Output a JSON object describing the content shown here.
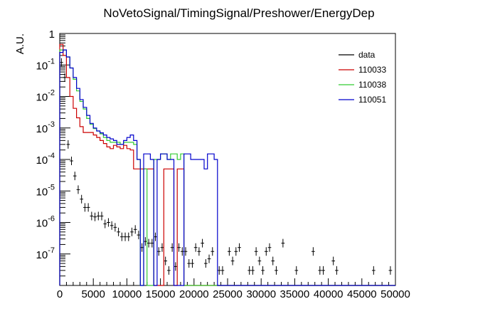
{
  "chart_data": {
    "type": "line",
    "title": "NoVetoSignal/TimingSignal/Preshower/EnergyDep",
    "xlabel": "",
    "ylabel": "A.U.",
    "xlim": [
      0,
      50000
    ],
    "ylim": [
      1e-08,
      1
    ],
    "yscale": "log",
    "grid": false,
    "legend_position": "top-right",
    "x_ticks": [
      0,
      5000,
      10000,
      15000,
      20000,
      25000,
      30000,
      35000,
      40000,
      45000,
      50000
    ],
    "x_tick_labels": [
      "0",
      "5000",
      "10000",
      "15000",
      "20000",
      "25000",
      "30000",
      "35000",
      "40000",
      "45000",
      "50000"
    ],
    "y_ticks": [
      1e-07,
      1e-06,
      1e-05,
      0.0001,
      0.001,
      0.01,
      0.1,
      1
    ],
    "y_tick_labels": [
      {
        "base": "10",
        "exp": "-7"
      },
      {
        "base": "10",
        "exp": "-6"
      },
      {
        "base": "10",
        "exp": "-5"
      },
      {
        "base": "10",
        "exp": "-4"
      },
      {
        "base": "10",
        "exp": "-3"
      },
      {
        "base": "10",
        "exp": "-2"
      },
      {
        "base": "10",
        "exp": "-1"
      },
      {
        "base": "1",
        "exp": ""
      }
    ],
    "bin_width": 500,
    "series": [
      {
        "name": "data",
        "color": "#000000",
        "style": "points",
        "points": [
          [
            250,
            0.12
          ],
          [
            750,
            0.04
          ],
          [
            1250,
            0.0003
          ],
          [
            1750,
            9e-05
          ],
          [
            2250,
            3e-05
          ],
          [
            2750,
            1.1e-05
          ],
          [
            3250,
            5.5e-06
          ],
          [
            3750,
            3e-06
          ],
          [
            4250,
            3e-06
          ],
          [
            4750,
            1.6e-06
          ],
          [
            5250,
            1.5e-06
          ],
          [
            5750,
            1.6e-06
          ],
          [
            6250,
            1.6e-06
          ],
          [
            6750,
            9e-07
          ],
          [
            7250,
            1e-06
          ],
          [
            7750,
            8e-07
          ],
          [
            8250,
            7e-07
          ],
          [
            8750,
            5e-07
          ],
          [
            9250,
            3.5e-07
          ],
          [
            9750,
            3.5e-07
          ],
          [
            10250,
            3.5e-07
          ],
          [
            10750,
            5e-07
          ],
          [
            11250,
            6e-07
          ],
          [
            11750,
            4e-07
          ],
          [
            12250,
            1.6e-07
          ],
          [
            12750,
            2.5e-07
          ],
          [
            13250,
            2.2e-07
          ],
          [
            13750,
            2.2e-07
          ],
          [
            14250,
            3.5e-07
          ],
          [
            14750,
            1.2e-07
          ],
          [
            15250,
            1.6e-07
          ],
          [
            15750,
            6e-08
          ],
          [
            16250,
            3e-08
          ],
          [
            16750,
            1.6e-07
          ],
          [
            17250,
            4e-08
          ],
          [
            17750,
            1.6e-07
          ],
          [
            18250,
            1.2e-07
          ],
          [
            18750,
            1.2e-07
          ],
          [
            19250,
            5e-08
          ],
          [
            19750,
            5e-08
          ],
          [
            20250,
            1.6e-07
          ],
          [
            20750,
            1.2e-07
          ],
          [
            21250,
            2.2e-07
          ],
          [
            21750,
            5e-08
          ],
          [
            22250,
            7e-08
          ],
          [
            22750,
            1.2e-07
          ],
          [
            23750,
            3e-08
          ],
          [
            24250,
            3e-08
          ],
          [
            25250,
            1.2e-07
          ],
          [
            25750,
            6e-08
          ],
          [
            26250,
            1.2e-07
          ],
          [
            26750,
            1.6e-07
          ],
          [
            28250,
            3e-08
          ],
          [
            28750,
            3e-08
          ],
          [
            29250,
            1.2e-07
          ],
          [
            29750,
            6e-08
          ],
          [
            30250,
            3e-08
          ],
          [
            30750,
            1.2e-07
          ],
          [
            31250,
            1.6e-07
          ],
          [
            31750,
            6e-08
          ],
          [
            32250,
            3e-08
          ],
          [
            33250,
            2.2e-07
          ],
          [
            35250,
            3e-08
          ],
          [
            37750,
            1.2e-07
          ],
          [
            38750,
            3e-08
          ],
          [
            39250,
            3e-08
          ],
          [
            40750,
            6e-08
          ],
          [
            41250,
            3e-08
          ],
          [
            46750,
            3e-08
          ],
          [
            49250,
            3e-08
          ]
        ]
      },
      {
        "name": "110033",
        "color": "#cc0000",
        "style": "step",
        "values": [
          0.45,
          0.2,
          0.04,
          0.01,
          0.0042,
          0.0021,
          0.0011,
          0.00072,
          0.00072,
          0.00072,
          0.0006,
          0.0005,
          0.0004,
          0.00032,
          0.00025,
          0.00022,
          0.00028,
          0.00025,
          0.00022,
          0.00028,
          0.00022,
          0.0002,
          5e-05,
          5e-05,
          5e-05,
          5e-05,
          5e-05,
          5e-05,
          0,
          0,
          0,
          5e-05,
          5e-05,
          5e-05,
          0,
          5e-05,
          5e-05,
          0,
          0,
          0,
          0,
          0,
          0,
          0,
          0,
          0,
          0,
          0,
          0,
          0,
          0,
          0,
          0,
          0,
          0,
          0,
          0,
          0,
          0,
          0,
          0,
          0,
          0,
          0,
          0,
          0,
          0,
          0,
          0,
          0,
          0,
          0,
          0,
          0,
          0,
          0,
          0,
          0,
          0,
          0,
          0,
          0,
          0,
          0,
          0,
          0,
          0,
          0,
          0,
          0,
          0,
          0,
          0,
          0,
          0,
          0,
          0,
          0,
          0,
          0
        ]
      },
      {
        "name": "110038",
        "color": "#33cc33",
        "style": "step",
        "values": [
          0.3,
          0.3,
          0.18,
          0.08,
          0.035,
          0.015,
          0.007,
          0.004,
          0.002,
          0.0013,
          0.00095,
          0.0008,
          0.00065,
          0.0005,
          0.0004,
          0.00035,
          0.00035,
          0.00035,
          0.0003,
          0.00035,
          0.00035,
          0.00035,
          0.0003,
          0.0001,
          0,
          5e-05,
          0,
          0,
          0.0001,
          0.0001,
          0.00015,
          0.00015,
          0.0001,
          0.00015,
          0.00015,
          0.0001,
          0.00015,
          0,
          0,
          0,
          0,
          0,
          0,
          0,
          0,
          0,
          0,
          0,
          0,
          0,
          0,
          0,
          0,
          0,
          0,
          0,
          0,
          0,
          0,
          0,
          0,
          0,
          0,
          0,
          0,
          0,
          0,
          0,
          0,
          0,
          0,
          0,
          0,
          0,
          0,
          0,
          0,
          0,
          0,
          0,
          0,
          0,
          0,
          0,
          0,
          0,
          0,
          0,
          0,
          0,
          0,
          0,
          0,
          0,
          0,
          0,
          0,
          0,
          0,
          0
        ]
      },
      {
        "name": "110051",
        "color": "#0000cc",
        "style": "step",
        "values": [
          0.25,
          0.3,
          0.18,
          0.08,
          0.04,
          0.018,
          0.008,
          0.0045,
          0.0025,
          0.0014,
          0.001,
          0.0008,
          0.0007,
          0.0006,
          0.0005,
          0.00045,
          0.0004,
          0.0003,
          0.0003,
          0.0004,
          0.0005,
          0.0006,
          0.0004,
          0.0001,
          0,
          0.00015,
          0.00015,
          0.0001,
          0,
          0.0001,
          0.00015,
          0.00015,
          0.0001,
          0.0001,
          0,
          0,
          0,
          0.00015,
          0.00015,
          0.0001,
          0.0001,
          0.0001,
          0.0001,
          5e-05,
          0.00015,
          0.00015,
          0.0001,
          0,
          0,
          0,
          0,
          0,
          0,
          0,
          0,
          0,
          0,
          0,
          0,
          0,
          0,
          0,
          0,
          0,
          0,
          0,
          0,
          0,
          0,
          0,
          0,
          0,
          0,
          0,
          0,
          0,
          0,
          0,
          0,
          0,
          0,
          0,
          0,
          0,
          0,
          0,
          0,
          0,
          0,
          0,
          0,
          0,
          0,
          0,
          0,
          0,
          0,
          0,
          0,
          0
        ]
      }
    ]
  }
}
